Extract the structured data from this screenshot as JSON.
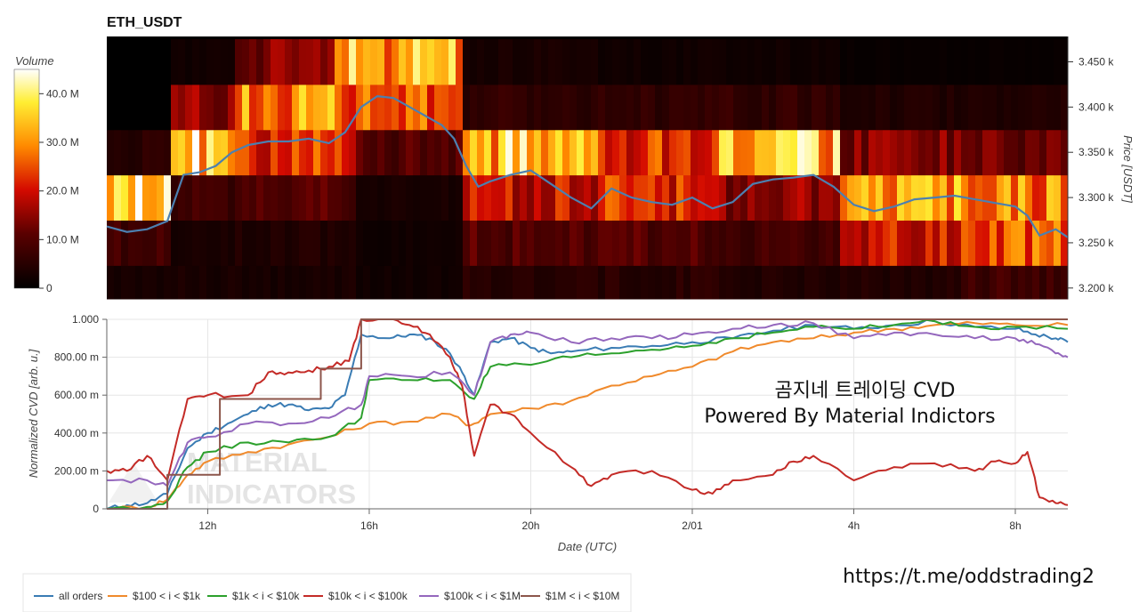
{
  "chart_data": [
    {
      "type": "heatmap",
      "title": "ETH_USDT",
      "xlabel": "",
      "ylabel": "Price [USDT]",
      "colorbar": {
        "title": "Volume",
        "range": [
          0,
          45000000
        ],
        "ticks": [
          "40.0 M",
          "30.0 M",
          "20.0 M",
          "10.0 M",
          "0"
        ],
        "tick_values": [
          40000000,
          30000000,
          20000000,
          10000000,
          0
        ]
      },
      "y_ticks": [
        "3.450 k",
        "3.400 k",
        "3.350 k",
        "3.300 k",
        "3.250 k",
        "3.200 k"
      ],
      "y_tick_values": [
        3450,
        3400,
        3350,
        3300,
        3250,
        3200
      ],
      "ylim": [
        3188,
        3478
      ],
      "price_bins": [
        3200,
        3250,
        3300,
        3350,
        3400,
        3450
      ],
      "bin_height": 50,
      "volume_segments": [
        {
          "t_start": 9.5,
          "t_end": 11.0,
          "volumes_m": [
            3,
            8,
            38,
            5,
            0,
            0
          ]
        },
        {
          "t_start": 11.0,
          "t_end": 12.5,
          "volumes_m": [
            3,
            3,
            8,
            36,
            15,
            2
          ]
        },
        {
          "t_start": 12.5,
          "t_end": 15.0,
          "volumes_m": [
            3,
            4,
            10,
            22,
            30,
            14
          ]
        },
        {
          "t_start": 15.0,
          "t_end": 15.6,
          "volumes_m": [
            3,
            4,
            10,
            20,
            25,
            38
          ]
        },
        {
          "t_start": 15.6,
          "t_end": 18.3,
          "volumes_m": [
            2,
            2,
            3,
            10,
            25,
            32
          ]
        },
        {
          "t_start": 18.3,
          "t_end": 21.5,
          "volumes_m": [
            5,
            10,
            20,
            34,
            6,
            3
          ]
        },
        {
          "t_start": 21.5,
          "t_end": 24.5,
          "volumes_m": [
            5,
            10,
            22,
            22,
            6,
            2
          ]
        },
        {
          "t_start": 24.5,
          "t_end": 27.5,
          "volumes_m": [
            4,
            8,
            15,
            34,
            6,
            2
          ]
        },
        {
          "t_start": 27.5,
          "t_end": 30.5,
          "volumes_m": [
            4,
            20,
            30,
            14,
            4,
            1
          ]
        },
        {
          "t_start": 30.5,
          "t_end": 33.3,
          "volumes_m": [
            8,
            25,
            28,
            12,
            4,
            1
          ]
        }
      ],
      "price_line": {
        "color": "#4c80b0",
        "x": [
          9.5,
          10.0,
          10.5,
          11.0,
          11.4,
          11.8,
          12.2,
          12.6,
          13.0,
          13.5,
          14.0,
          14.5,
          15.0,
          15.4,
          15.8,
          16.2,
          16.6,
          17.0,
          17.4,
          17.8,
          18.1,
          18.4,
          18.7,
          19.0,
          19.5,
          20.0,
          20.5,
          21.0,
          21.5,
          22.0,
          22.5,
          23.0,
          23.5,
          24.0,
          24.5,
          25.0,
          25.5,
          26.0,
          26.5,
          27.0,
          27.5,
          28.0,
          28.5,
          29.0,
          29.5,
          30.0,
          30.5,
          31.0,
          31.5,
          32.0,
          32.3,
          32.6,
          33.0,
          33.3
        ],
        "y": [
          3268,
          3262,
          3265,
          3274,
          3325,
          3328,
          3335,
          3350,
          3358,
          3362,
          3362,
          3365,
          3360,
          3372,
          3400,
          3412,
          3410,
          3400,
          3390,
          3380,
          3365,
          3335,
          3312,
          3318,
          3325,
          3330,
          3315,
          3300,
          3288,
          3310,
          3300,
          3295,
          3292,
          3300,
          3288,
          3295,
          3315,
          3320,
          3322,
          3325,
          3312,
          3292,
          3285,
          3290,
          3298,
          3300,
          3302,
          3298,
          3294,
          3290,
          3280,
          3258,
          3265,
          3256
        ]
      }
    },
    {
      "type": "line",
      "title": "",
      "xlabel": "Date (UTC)",
      "ylabel": "Normalized CVD [arb. u.]",
      "xlim": [
        9.5,
        33.3
      ],
      "ylim": [
        0,
        1
      ],
      "x_ticks": [
        "12h",
        "16h",
        "20h",
        "2/01",
        "4h",
        "8h"
      ],
      "x_tick_values": [
        12,
        16,
        20,
        24,
        28,
        32
      ],
      "y_ticks": [
        "1.000",
        "800.00 m",
        "600.00 m",
        "400.00 m",
        "200.00 m",
        "0"
      ],
      "y_tick_values": [
        1,
        0.8,
        0.6,
        0.4,
        0.2,
        0
      ],
      "series": [
        {
          "name": "all orders",
          "color": "#3a7cb4",
          "x": [
            9.5,
            10.0,
            10.5,
            11.0,
            11.5,
            12.0,
            12.5,
            13.0,
            13.5,
            14.0,
            14.5,
            15.0,
            15.4,
            15.8,
            16.5,
            17.0,
            17.5,
            18.0,
            18.3,
            18.6,
            19.0,
            19.5,
            20.0,
            20.5,
            21.0,
            22.0,
            23.0,
            24.0,
            25.0,
            26.0,
            27.0,
            28.0,
            29.0,
            30.0,
            31.0,
            32.0,
            32.5,
            33.0,
            33.3
          ],
          "y": [
            0.0,
            0.02,
            0.03,
            0.08,
            0.32,
            0.4,
            0.45,
            0.5,
            0.55,
            0.55,
            0.52,
            0.53,
            0.6,
            0.92,
            0.9,
            0.92,
            0.9,
            0.82,
            0.72,
            0.6,
            0.88,
            0.9,
            0.85,
            0.82,
            0.83,
            0.85,
            0.86,
            0.88,
            0.9,
            0.94,
            0.97,
            0.95,
            0.97,
            0.99,
            0.96,
            0.95,
            0.92,
            0.9,
            0.88
          ]
        },
        {
          "name": "$100 < i < $1k",
          "color": "#f08a2c",
          "x": [
            9.5,
            10.5,
            11.0,
            11.5,
            12.0,
            13.0,
            14.0,
            15.0,
            16.0,
            17.0,
            18.0,
            18.5,
            19.0,
            20.0,
            21.0,
            22.0,
            23.0,
            24.0,
            25.0,
            26.0,
            27.0,
            28.0,
            29.0,
            30.0,
            31.0,
            32.0,
            33.3
          ],
          "y": [
            0.0,
            0.01,
            0.05,
            0.18,
            0.25,
            0.3,
            0.34,
            0.38,
            0.45,
            0.46,
            0.5,
            0.44,
            0.5,
            0.53,
            0.57,
            0.65,
            0.7,
            0.75,
            0.83,
            0.88,
            0.9,
            0.93,
            0.95,
            0.97,
            0.98,
            0.97,
            0.97
          ]
        },
        {
          "name": "$1k < i < $10k",
          "color": "#2ca02c",
          "x": [
            9.5,
            10.5,
            11.0,
            11.5,
            12.0,
            13.0,
            14.0,
            15.0,
            15.8,
            16.0,
            17.0,
            18.0,
            18.6,
            19.0,
            20.0,
            21.0,
            22.0,
            23.0,
            24.0,
            25.0,
            26.0,
            27.0,
            28.0,
            29.0,
            30.0,
            31.0,
            32.0,
            33.3
          ],
          "y": [
            0.0,
            0.01,
            0.04,
            0.22,
            0.3,
            0.35,
            0.35,
            0.38,
            0.48,
            0.68,
            0.68,
            0.68,
            0.58,
            0.75,
            0.76,
            0.8,
            0.82,
            0.84,
            0.86,
            0.9,
            0.93,
            0.96,
            0.95,
            0.97,
            0.99,
            0.96,
            0.96,
            0.95
          ]
        },
        {
          "name": "$10k < i < $100k",
          "color": "#c42b27",
          "x": [
            9.5,
            10.0,
            10.5,
            11.0,
            11.5,
            12.0,
            13.0,
            13.5,
            14.0,
            14.5,
            15.0,
            15.5,
            15.8,
            16.5,
            17.0,
            17.5,
            18.0,
            18.3,
            18.6,
            19.0,
            19.5,
            20.0,
            21.0,
            21.5,
            22.0,
            23.0,
            24.0,
            24.5,
            25.0,
            26.0,
            26.5,
            27.0,
            28.0,
            29.0,
            30.0,
            31.0,
            31.5,
            32.0,
            32.3,
            32.6,
            33.0,
            33.3
          ],
          "y": [
            0.2,
            0.2,
            0.28,
            0.15,
            0.58,
            0.6,
            0.6,
            0.72,
            0.72,
            0.73,
            0.75,
            0.78,
            1.0,
            1.0,
            0.97,
            0.92,
            0.8,
            0.65,
            0.28,
            0.55,
            0.5,
            0.4,
            0.22,
            0.12,
            0.18,
            0.2,
            0.1,
            0.08,
            0.15,
            0.18,
            0.25,
            0.28,
            0.15,
            0.22,
            0.24,
            0.2,
            0.25,
            0.24,
            0.3,
            0.06,
            0.03,
            0.02
          ]
        },
        {
          "name": "$100k < i < $1M",
          "color": "#9467bd",
          "x": [
            9.5,
            10.5,
            11.0,
            11.5,
            12.0,
            13.0,
            14.0,
            15.0,
            15.8,
            16.0,
            17.0,
            18.0,
            18.6,
            19.0,
            19.5,
            20.0,
            21.0,
            22.0,
            23.0,
            24.0,
            25.0,
            26.0,
            27.0,
            28.0,
            29.0,
            30.0,
            31.0,
            32.0,
            32.5,
            33.0,
            33.3
          ],
          "y": [
            0.15,
            0.15,
            0.12,
            0.35,
            0.38,
            0.45,
            0.45,
            0.48,
            0.55,
            0.7,
            0.7,
            0.72,
            0.6,
            0.88,
            0.92,
            0.93,
            0.88,
            0.9,
            0.9,
            0.92,
            0.95,
            0.97,
            0.98,
            0.9,
            0.93,
            0.92,
            0.9,
            0.9,
            0.87,
            0.82,
            0.8
          ]
        },
        {
          "name": "$1M < i < $10M",
          "color": "#8c564b",
          "x": [
            9.5,
            11.0,
            11.0,
            12.3,
            12.3,
            14.8,
            14.8,
            15.8,
            15.8,
            33.3
          ],
          "y": [
            0.0,
            0.0,
            0.18,
            0.18,
            0.58,
            0.58,
            0.74,
            0.74,
            1.0,
            1.0
          ]
        }
      ]
    }
  ],
  "overlay_text": [
    "곰지네 트레이딩 CVD",
    "Powered By Material Indictors"
  ],
  "url": "https://t.me/oddstrading2",
  "watermark": [
    "MATERIAL",
    "INDICATORS"
  ]
}
